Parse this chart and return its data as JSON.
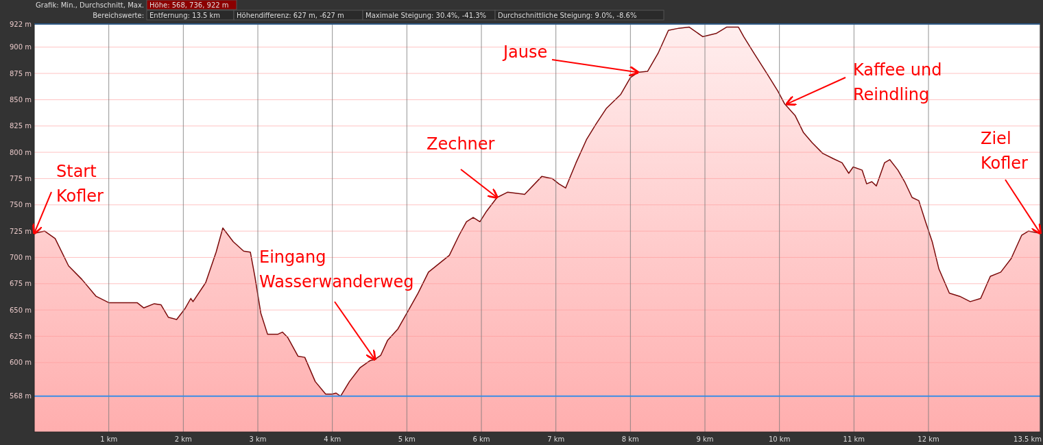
{
  "chart_data": {
    "type": "area",
    "annotations": [
      "Grafik: Min., Durchschnitt, Max.",
      "Höhe: 568, 736, 922 m",
      "Bereichswerte:",
      "Entfernung: 13.5 km",
      "Höhendifferenz: 627 m, -627 m",
      "Maximale Steigung: 30.4%, -41.3%",
      "Durchschnittliche Steigung: 9.0%, -8.6%",
      {
        "text": "Start\nKofler",
        "x": 0,
        "y": 723
      },
      {
        "text": "Eingang\nWasserwanderweg",
        "x": 4.57,
        "y": 603
      },
      {
        "text": "Zechner",
        "x": 6.21,
        "y": 757
      },
      {
        "text": "Jause",
        "x": 8.1,
        "y": 876
      },
      {
        "text": "Kaffee und\nReindling",
        "x": 10.1,
        "y": 846
      },
      {
        "text": "Ziel\nKofler",
        "x": 13.5,
        "y": 723
      }
    ],
    "x": [
      0,
      0.14,
      0.28,
      0.46,
      0.64,
      0.83,
      1.0,
      1.38,
      1.47,
      1.61,
      1.7,
      1.8,
      1.91,
      2.02,
      2.1,
      2.13,
      2.3,
      2.44,
      2.53,
      2.67,
      2.81,
      2.9,
      2.96,
      3.04,
      3.13,
      3.27,
      3.33,
      3.4,
      3.54,
      3.63,
      3.77,
      3.91,
      4.0,
      4.05,
      4.11,
      4.23,
      4.37,
      4.51,
      4.57,
      4.65,
      4.74,
      4.88,
      5.0,
      5.15,
      5.29,
      5.43,
      5.57,
      5.7,
      5.8,
      5.89,
      5.98,
      6.07,
      6.21,
      6.35,
      6.58,
      6.81,
      6.95,
      7.04,
      7.13,
      7.27,
      7.41,
      7.54,
      7.68,
      7.87,
      8.0,
      8.1,
      8.23,
      8.37,
      8.51,
      8.65,
      8.79,
      8.97,
      9.15,
      9.29,
      9.45,
      9.52,
      9.66,
      9.84,
      9.98,
      10.07,
      10.21,
      10.32,
      10.44,
      10.58,
      10.72,
      10.84,
      10.93,
      10.99,
      11.11,
      11.17,
      11.24,
      11.3,
      11.41,
      11.48,
      11.59,
      11.68,
      11.78,
      11.87,
      11.96,
      12.05,
      12.14,
      12.28,
      12.42,
      12.56,
      12.7,
      12.83,
      12.97,
      13.11,
      13.25,
      13.34,
      13.5
    ],
    "series": [
      {
        "color": "#7a0a0a",
        "values": [
          723,
          725,
          718,
          692,
          679,
          663,
          657,
          657,
          652,
          656,
          655,
          643,
          641,
          651,
          661,
          658,
          676,
          705,
          728,
          715,
          706,
          705,
          682,
          647,
          627,
          627,
          629,
          624,
          606,
          605,
          582,
          570,
          570,
          571,
          568,
          582,
          595,
          602,
          603,
          607,
          621,
          632,
          647,
          666,
          686,
          694,
          702,
          721,
          734,
          738,
          734,
          744,
          757,
          762,
          760,
          777,
          775,
          770,
          766,
          790,
          812,
          827,
          842,
          855,
          871,
          876,
          877,
          894,
          916,
          918,
          919,
          910,
          913,
          919,
          919,
          910,
          894,
          874,
          858,
          846,
          835,
          819,
          809,
          799,
          794,
          790,
          780,
          786,
          783,
          770,
          772,
          768,
          790,
          793,
          783,
          772,
          757,
          754,
          734,
          715,
          689,
          666,
          663,
          658,
          661,
          682,
          686,
          699,
          721,
          725,
          723
        ]
      }
    ],
    "xlim": [
      0,
      13.5
    ],
    "ylim": [
      534,
      922
    ],
    "xticks": [
      {
        "value": 1,
        "label": "1 km"
      },
      {
        "value": 2,
        "label": "2 km"
      },
      {
        "value": 3,
        "label": "3 km"
      },
      {
        "value": 4,
        "label": "4 km"
      },
      {
        "value": 5,
        "label": "5 km"
      },
      {
        "value": 6,
        "label": "6 km"
      },
      {
        "value": 7,
        "label": "7 km"
      },
      {
        "value": 8,
        "label": "8 km"
      },
      {
        "value": 9,
        "label": "9 km"
      },
      {
        "value": 10,
        "label": "10 km"
      },
      {
        "value": 11,
        "label": "11 km"
      },
      {
        "value": 12,
        "label": "12 km"
      },
      {
        "value": 13.5,
        "label": "13.5 km"
      }
    ],
    "yticks": [
      {
        "value": 568,
        "label": "568 m"
      },
      {
        "value": 600,
        "label": "600 m"
      },
      {
        "value": 625,
        "label": "625 m"
      },
      {
        "value": 650,
        "label": "650 m"
      },
      {
        "value": 675,
        "label": "675 m"
      },
      {
        "value": 700,
        "label": "700 m"
      },
      {
        "value": 725,
        "label": "725 m"
      },
      {
        "value": 750,
        "label": "750 m"
      },
      {
        "value": 775,
        "label": "775 m"
      },
      {
        "value": 800,
        "label": "800 m"
      },
      {
        "value": 825,
        "label": "825 m"
      },
      {
        "value": 850,
        "label": "850 m"
      },
      {
        "value": 875,
        "label": "875 m"
      },
      {
        "value": 900,
        "label": "900 m"
      },
      {
        "value": 922,
        "label": "922 m"
      }
    ],
    "ref_lines": [
      {
        "axis": "y",
        "value": 568,
        "color": "#3a8ee6"
      },
      {
        "axis": "y",
        "value": 922,
        "color": "#3a8ee6"
      }
    ],
    "grid": true
  }
}
